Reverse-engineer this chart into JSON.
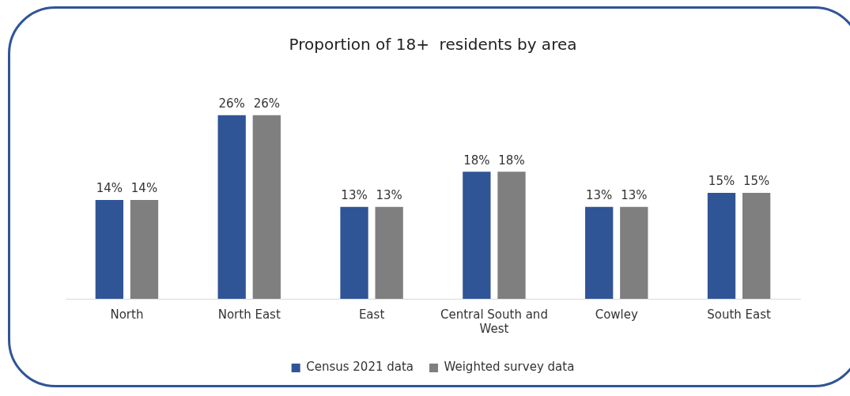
{
  "chart_data": {
    "type": "bar",
    "title": "Proportion of 18+  residents by area",
    "categories": [
      "North",
      "North East",
      "East",
      "Central South and West",
      "Cowley",
      "South East"
    ],
    "series": [
      {
        "name": "Census 2021 data",
        "color": "#2f5597",
        "values": [
          14,
          26,
          13,
          18,
          13,
          15
        ],
        "value_labels": [
          "14%",
          "26%",
          "13%",
          "18%",
          "13%",
          "15%"
        ]
      },
      {
        "name": "Weighted survey data",
        "color": "#7f7f7f",
        "values": [
          14,
          26,
          13,
          18,
          13,
          15
        ],
        "value_labels": [
          "14%",
          "26%",
          "13%",
          "18%",
          "13%",
          "15%"
        ]
      }
    ],
    "legend": "bottom",
    "grid": false
  }
}
